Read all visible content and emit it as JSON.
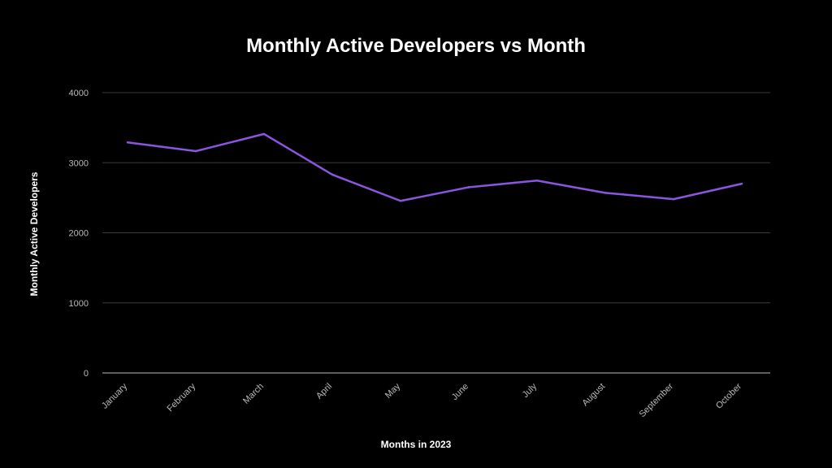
{
  "chart_data": {
    "type": "line",
    "title": "Monthly Active Developers vs Month",
    "xlabel": "Months in 2023",
    "ylabel": "Monthly Active Developers",
    "categories": [
      "January",
      "February",
      "March",
      "April",
      "May",
      "June",
      "July",
      "August",
      "September",
      "October"
    ],
    "series": [
      {
        "values": [
          3290,
          3165,
          3410,
          2830,
          2455,
          2650,
          2745,
          2570,
          2480,
          2700
        ],
        "color": "#8b55e0"
      }
    ],
    "ylim": [
      0,
      4000
    ],
    "yticks": [
      0,
      1000,
      2000,
      3000,
      4000
    ],
    "grid": true,
    "background": "#000000",
    "text_color": "#ffffff",
    "grid_color": "#3a3a3a"
  }
}
